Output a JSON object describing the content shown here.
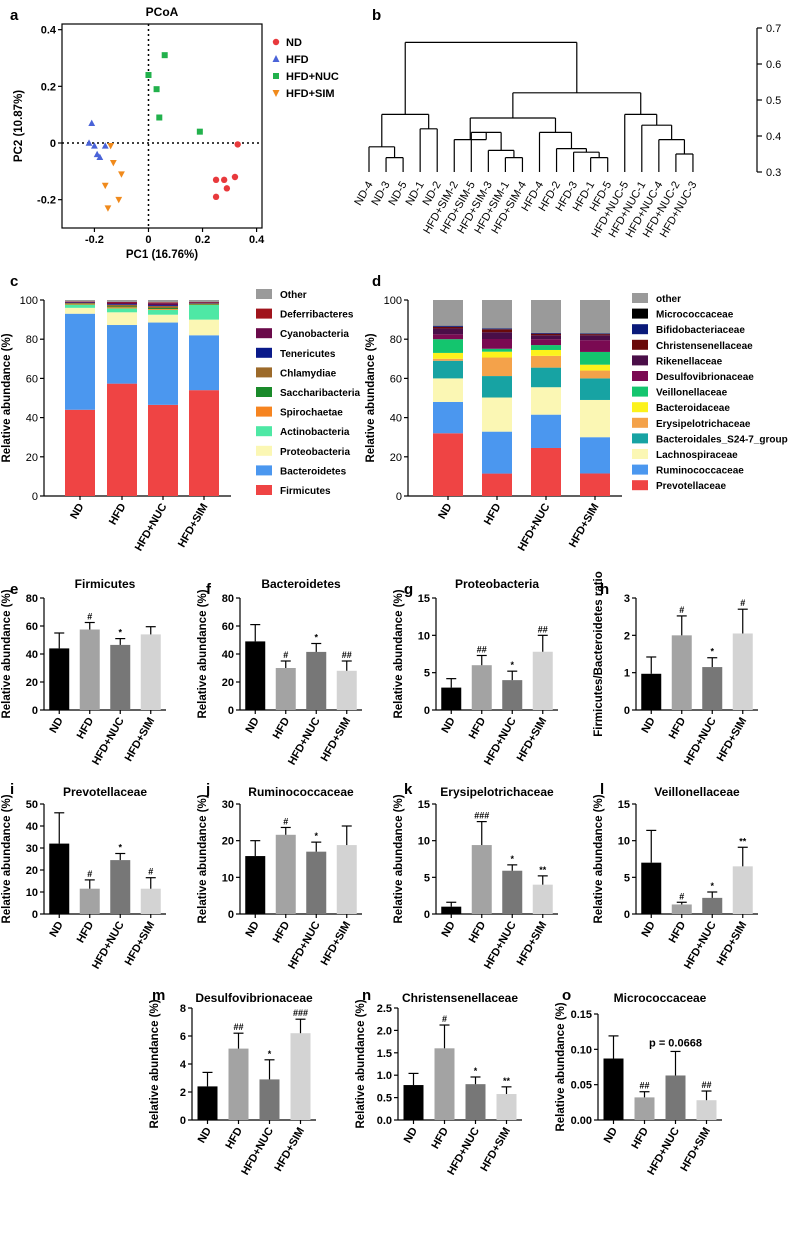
{
  "chart_data": [
    {
      "panel": "a",
      "type": "scatter",
      "title": "PCoA",
      "xlabel": "PC1 (16.76%)",
      "ylabel": "PC2 (10.87%)",
      "xlim": [
        -0.32,
        0.42
      ],
      "ylim": [
        -0.3,
        0.42
      ],
      "xticks": [
        -0.2,
        0.0,
        0.2,
        0.4
      ],
      "yticks": [
        -0.2,
        0.0,
        0.2,
        0.4
      ],
      "series": [
        {
          "name": "ND",
          "color": "#e8393c",
          "marker": "circle",
          "x": [
            0.33,
            0.32,
            0.29,
            0.28,
            0.25,
            0.25
          ],
          "y": [
            -0.005,
            -0.12,
            -0.16,
            -0.13,
            -0.13,
            -0.19
          ]
        },
        {
          "name": "HFD",
          "color": "#4a63d8",
          "marker": "triangle-up",
          "x": [
            -0.21,
            -0.22,
            -0.2,
            -0.16,
            -0.19,
            -0.18
          ],
          "y": [
            0.07,
            0.0,
            -0.01,
            -0.01,
            -0.04,
            -0.05
          ]
        },
        {
          "name": "HFD+NUC",
          "color": "#22b14c",
          "marker": "square",
          "x": [
            0.06,
            0.0,
            0.03,
            0.04,
            0.19,
            0.0
          ],
          "y": [
            0.31,
            0.24,
            0.19,
            0.09,
            0.04,
            0.24
          ]
        },
        {
          "name": "HFD+SIM",
          "color": "#f08a1c",
          "marker": "triangle-down",
          "x": [
            -0.14,
            -0.13,
            -0.1,
            -0.16,
            -0.11,
            -0.15
          ],
          "y": [
            -0.01,
            -0.07,
            -0.11,
            -0.15,
            -0.2,
            -0.23
          ]
        }
      ]
    },
    {
      "panel": "b",
      "type": "dendrogram",
      "yticks": [
        0.3,
        0.4,
        0.5,
        0.6,
        0.7
      ],
      "leaves": [
        "ND-4",
        "ND-3",
        "ND-5",
        "ND-1",
        "ND-2",
        "HFD+SIM-2",
        "HFD+SIM-5",
        "HFD+SIM-3",
        "HFD+SIM-1",
        "HFD+SIM-4",
        "HFD-4",
        "HFD-2",
        "HFD-3",
        "HFD-1",
        "HFD-5",
        "HFD+NUC-5",
        "HFD+NUC-1",
        "HFD+NUC-4",
        "HFD+NUC-2",
        "HFD+NUC-3"
      ],
      "merges": [
        {
          "a": "ND-3",
          "b": "ND-5",
          "height": 0.34
        },
        {
          "a": "ND-3/ND-5",
          "b": "ND-4",
          "height": 0.37
        },
        {
          "a": "ND-1",
          "b": "ND-2",
          "height": 0.42
        },
        {
          "a": "ND-4,3,5",
          "b": "ND-1,2",
          "height": 0.46
        },
        {
          "a": "HFD+SIM-1",
          "b": "HFD+SIM-4",
          "height": 0.34
        },
        {
          "a": "HFD+SIM-3",
          "b": "HFD+SIM-1,4",
          "height": 0.36
        },
        {
          "a": "HFD+SIM-5",
          "b": "HFD+SIM-3,1,4",
          "height": 0.41
        },
        {
          "a": "HFD+SIM-2",
          "b": "HFD+SIM-5,3,1,4",
          "height": 0.39
        },
        {
          "a": "HFD-1",
          "b": "HFD-5",
          "height": 0.34
        },
        {
          "a": "HFD-3",
          "b": "HFD-1,5",
          "height": 0.355
        },
        {
          "a": "HFD-2",
          "b": "HFD-3,1,5",
          "height": 0.365
        },
        {
          "a": "HFD-4",
          "b": "HFD-2,3,1,5",
          "height": 0.41
        },
        {
          "a": "HFD+SIM cluster",
          "b": "HFD cluster",
          "height": 0.45
        },
        {
          "a": "HFD+NUC-2",
          "b": "HFD+NUC-3",
          "height": 0.35
        },
        {
          "a": "HFD+NUC-4",
          "b": "HFD+NUC-2,3",
          "height": 0.39
        },
        {
          "a": "HFD+NUC-1",
          "b": "HFD+NUC-4,2,3",
          "height": 0.43
        },
        {
          "a": "HFD+NUC-5",
          "b": "HFD+NUC-1,4,2,3",
          "height": 0.46
        },
        {
          "a": "HFD+SIM/HFD",
          "b": "HFD+NUC",
          "height": 0.52
        },
        {
          "a": "ND",
          "b": "others",
          "height": 0.66
        }
      ]
    },
    {
      "panel": "c",
      "type": "bar",
      "stacked": true,
      "ylabel": "Relative abundance (%)",
      "ylim": [
        0,
        100
      ],
      "yticks": [
        0,
        20,
        40,
        60,
        80,
        100
      ],
      "categories": [
        "ND",
        "HFD",
        "HFD+NUC",
        "HFD+SIM"
      ],
      "series": [
        {
          "name": "Firmicutes",
          "color": "#ef4444",
          "values": [
            44.0,
            57.5,
            46.5,
            54.0
          ]
        },
        {
          "name": "Bacteroidetes",
          "color": "#4b97ef",
          "values": [
            49.0,
            30.0,
            42.0,
            28.0
          ]
        },
        {
          "name": "Proteobacteria",
          "color": "#fbf7b4",
          "values": [
            3.0,
            6.5,
            4.0,
            8.0
          ]
        },
        {
          "name": "Actinobacteria",
          "color": "#4ee8a5",
          "values": [
            1.5,
            2.0,
            2.5,
            7.5
          ]
        },
        {
          "name": "Spirochaetae",
          "color": "#f68420",
          "values": [
            0.3,
            0.6,
            0.4,
            0.2
          ]
        },
        {
          "name": "Saccharibacteria",
          "color": "#1a8a2a",
          "values": [
            0.3,
            0.4,
            0.5,
            0.3
          ]
        },
        {
          "name": "Chlamydiae",
          "color": "#9c6a2a",
          "values": [
            0.4,
            0.8,
            1.0,
            0.2
          ]
        },
        {
          "name": "Tenericutes",
          "color": "#0a1a8a",
          "values": [
            0.2,
            0.4,
            0.5,
            0.2
          ]
        },
        {
          "name": "Cyanobacteria",
          "color": "#6a0a4a",
          "values": [
            0.4,
            0.8,
            1.0,
            0.4
          ]
        },
        {
          "name": "Deferribacteres",
          "color": "#a0141c",
          "values": [
            0.2,
            0.3,
            0.4,
            0.2
          ]
        },
        {
          "name": "Other",
          "color": "#9a9a9a",
          "values": [
            0.7,
            1.0,
            1.2,
            1.0
          ]
        }
      ],
      "legend_order": [
        "Other",
        "Deferribacteres",
        "Cyanobacteria",
        "Tenericutes",
        "Chlamydiae",
        "Saccharibacteria",
        "Spirochaetae",
        "Actinobacteria",
        "Proteobacteria",
        "Bacteroidetes",
        "Firmicutes"
      ]
    },
    {
      "panel": "d",
      "type": "bar",
      "stacked": true,
      "ylabel": "Relative abundance (%)",
      "ylim": [
        0,
        100
      ],
      "yticks": [
        0,
        20,
        40,
        60,
        80,
        100
      ],
      "categories": [
        "ND",
        "HFD",
        "HFD+NUC",
        "HFD+SIM"
      ],
      "series": [
        {
          "name": "Prevotellaceae",
          "color": "#ef4444",
          "values": [
            32.0,
            11.5,
            24.5,
            11.5
          ]
        },
        {
          "name": "Ruminococcaceae",
          "color": "#4b97ef",
          "values": [
            16.0,
            21.5,
            17.0,
            18.5
          ]
        },
        {
          "name": "Lachnospiraceae",
          "color": "#fbf7b4",
          "values": [
            12.0,
            17.5,
            14.0,
            19.0
          ]
        },
        {
          "name": "Bacteroidales_S24-7_group",
          "color": "#17a3a3",
          "values": [
            9.0,
            11.0,
            10.0,
            11.0
          ]
        },
        {
          "name": "Erysipelotrichaceae",
          "color": "#f4a24a",
          "values": [
            1.0,
            9.5,
            6.0,
            4.0
          ]
        },
        {
          "name": "Bacteroidaceae",
          "color": "#fcf21c",
          "values": [
            3.0,
            3.0,
            3.0,
            3.0
          ]
        },
        {
          "name": "Veillonellaceae",
          "color": "#14c56e",
          "values": [
            7.0,
            1.5,
            2.5,
            6.5
          ]
        },
        {
          "name": "Desulfovibrionaceae",
          "color": "#7a0a52",
          "values": [
            2.5,
            5.0,
            3.0,
            6.0
          ]
        },
        {
          "name": "Rikenellaceae",
          "color": "#4a0e48",
          "values": [
            3.0,
            3.5,
            2.0,
            2.5
          ]
        },
        {
          "name": "Christensenellaceae",
          "color": "#6a0a0a",
          "values": [
            0.8,
            1.5,
            0.8,
            0.6
          ]
        },
        {
          "name": "Bifidobacteriaceae",
          "color": "#0a1a7a",
          "values": [
            0.5,
            0.4,
            0.4,
            0.3
          ]
        },
        {
          "name": "Micrococcaceae",
          "color": "#000000",
          "values": [
            0.1,
            0.03,
            0.06,
            0.03
          ]
        },
        {
          "name": "other",
          "color": "#9a9a9a",
          "values": [
            13.1,
            14.57,
            16.74,
            17.07
          ]
        }
      ],
      "legend_order": [
        "other",
        "Micrococcaceae",
        "Bifidobacteriaceae",
        "Christensenellaceae",
        "Rikenellaceae",
        "Desulfovibrionaceae",
        "Veillonellaceae",
        "Bacteroidaceae",
        "Erysipelotrichaceae",
        "Bacteroidales_S24-7_group",
        "Lachnospiraceae",
        "Ruminococcaceae",
        "Prevotellaceae"
      ]
    },
    {
      "panel": "e",
      "type": "bar",
      "title": "Firmicutes",
      "ylabel": "Relative abundance (%)",
      "ylim": [
        0,
        80
      ],
      "yticks": [
        0,
        20,
        40,
        60,
        80
      ],
      "tick_labels": [
        "0",
        "20",
        "40",
        "60",
        "80"
      ],
      "categories": [
        "ND",
        "HFD",
        "HFD+NUC",
        "HFD+SIM"
      ],
      "values": [
        44,
        57.5,
        46.5,
        54
      ],
      "errors": [
        11,
        5,
        4.5,
        5.5
      ],
      "annotations": [
        "",
        "#",
        "*",
        ""
      ]
    },
    {
      "panel": "f",
      "type": "bar",
      "title": "Bacteroidetes",
      "ylabel": "Relative abundance (%)",
      "ylim": [
        0,
        80
      ],
      "yticks": [
        0,
        20,
        40,
        60,
        80
      ],
      "tick_labels": [
        "0",
        "20",
        "40",
        "60",
        "80"
      ],
      "categories": [
        "ND",
        "HFD",
        "HFD+NUC",
        "HFD+SIM"
      ],
      "values": [
        49,
        30,
        41.5,
        28
      ],
      "errors": [
        12,
        5,
        6,
        7
      ],
      "annotations": [
        "",
        "#",
        "*",
        "##"
      ]
    },
    {
      "panel": "g",
      "type": "bar",
      "title": "Proteobacteria",
      "ylabel": "Relative abundance (%)",
      "ylim": [
        0,
        15
      ],
      "yticks": [
        0,
        5,
        10,
        15
      ],
      "tick_labels": [
        "0",
        "5",
        "10",
        "15"
      ],
      "categories": [
        "ND",
        "HFD",
        "HFD+NUC",
        "HFD+SIM"
      ],
      "values": [
        3,
        6,
        4,
        7.8
      ],
      "errors": [
        1.2,
        1.3,
        1.2,
        2.2
      ],
      "annotations": [
        "",
        "##",
        "*",
        "##"
      ]
    },
    {
      "panel": "h",
      "type": "bar",
      "title": "",
      "ylabel": "Firmicutes/Bacteroidetes ratio",
      "ylim": [
        0,
        3
      ],
      "yticks": [
        0,
        1,
        2,
        3
      ],
      "tick_labels": [
        "0",
        "1",
        "2",
        "3"
      ],
      "categories": [
        "ND",
        "HFD",
        "HFD+NUC",
        "HFD+SIM"
      ],
      "values": [
        0.97,
        2.0,
        1.15,
        2.05
      ],
      "errors": [
        0.45,
        0.52,
        0.25,
        0.65
      ],
      "annotations": [
        "",
        "#",
        "*",
        "#"
      ]
    },
    {
      "panel": "i",
      "type": "bar",
      "title": "Prevotellaceae",
      "ylabel": "Relative abundance (%)",
      "ylim": [
        0,
        50
      ],
      "yticks": [
        0,
        10,
        20,
        30,
        40,
        50
      ],
      "tick_labels": [
        "0",
        "10",
        "20",
        "30",
        "40",
        "50"
      ],
      "categories": [
        "ND",
        "HFD",
        "HFD+NUC",
        "HFD+SIM"
      ],
      "values": [
        32,
        11.5,
        24.5,
        11.5
      ],
      "errors": [
        14,
        4,
        3,
        5
      ],
      "annotations": [
        "",
        "#",
        "*",
        "#"
      ]
    },
    {
      "panel": "j",
      "type": "bar",
      "title": "Ruminococcaceae",
      "ylabel": "Relative abundance (%)",
      "ylim": [
        0,
        30
      ],
      "yticks": [
        0,
        10,
        20,
        30
      ],
      "tick_labels": [
        "0",
        "10",
        "20",
        "30"
      ],
      "categories": [
        "ND",
        "HFD",
        "HFD+NUC",
        "HFD+SIM"
      ],
      "values": [
        15.8,
        21.6,
        17,
        18.8
      ],
      "errors": [
        4.2,
        2,
        2.6,
        5.2
      ],
      "annotations": [
        "",
        "#",
        "*",
        ""
      ]
    },
    {
      "panel": "k",
      "type": "bar",
      "title": "Erysipelotrichaceae",
      "ylabel": "Relative abundance (%)",
      "ylim": [
        0,
        15
      ],
      "yticks": [
        0,
        5,
        10,
        15
      ],
      "tick_labels": [
        "0",
        "5",
        "10",
        "15"
      ],
      "categories": [
        "ND",
        "HFD",
        "HFD+NUC",
        "HFD+SIM"
      ],
      "values": [
        1.0,
        9.4,
        5.9,
        4.0
      ],
      "errors": [
        0.6,
        3.2,
        0.8,
        1.2
      ],
      "annotations": [
        "",
        "###",
        "*",
        "**"
      ]
    },
    {
      "panel": "l",
      "type": "bar",
      "title": "Veillonellaceae",
      "ylabel": "Relative abundance (%)",
      "ylim": [
        0,
        15
      ],
      "yticks": [
        0,
        5,
        10,
        15
      ],
      "tick_labels": [
        "0",
        "5",
        "10",
        "15"
      ],
      "categories": [
        "ND",
        "HFD",
        "HFD+NUC",
        "HFD+SIM"
      ],
      "values": [
        7.0,
        1.3,
        2.2,
        6.5
      ],
      "errors": [
        4.4,
        0.3,
        0.8,
        2.6
      ],
      "annotations": [
        "",
        "#",
        "*",
        "**"
      ]
    },
    {
      "panel": "m",
      "type": "bar",
      "title": "Desulfovibrionaceae",
      "ylabel": "Relative abundance (%)",
      "ylim": [
        0,
        8
      ],
      "yticks": [
        0,
        2,
        4,
        6,
        8
      ],
      "tick_labels": [
        "0",
        "2",
        "4",
        "6",
        "8"
      ],
      "categories": [
        "ND",
        "HFD",
        "HFD+NUC",
        "HFD+SIM"
      ],
      "values": [
        2.4,
        5.1,
        2.9,
        6.2
      ],
      "errors": [
        1.0,
        1.1,
        1.4,
        1.0
      ],
      "annotations": [
        "",
        "##",
        "*",
        "###"
      ]
    },
    {
      "panel": "n",
      "type": "bar",
      "title": "Christensenellaceae",
      "ylabel": "Relative abundance (%)",
      "ylim": [
        0,
        2.5
      ],
      "yticks": [
        0,
        0.5,
        1,
        1.5,
        2,
        2.5
      ],
      "tick_labels": [
        "0.0",
        "0.5",
        "1.0",
        "1.5",
        "2.0",
        "2.5"
      ],
      "categories": [
        "ND",
        "HFD",
        "HFD+NUC",
        "HFD+SIM"
      ],
      "values": [
        0.78,
        1.6,
        0.8,
        0.58
      ],
      "errors": [
        0.26,
        0.52,
        0.16,
        0.16
      ],
      "annotations": [
        "",
        "#",
        "*",
        "**"
      ]
    },
    {
      "panel": "o",
      "type": "bar",
      "title": "Micrococcaceae",
      "ylabel": "Relative abundance (%)",
      "ylim": [
        0,
        0.15
      ],
      "yticks": [
        0,
        0.05,
        0.1,
        0.15
      ],
      "tick_labels": [
        "0.00",
        "0.05",
        "0.10",
        "0.15"
      ],
      "categories": [
        "ND",
        "HFD",
        "HFD+NUC",
        "HFD+SIM"
      ],
      "values": [
        0.087,
        0.032,
        0.063,
        0.028
      ],
      "errors": [
        0.032,
        0.008,
        0.034,
        0.013
      ],
      "annotations": [
        "",
        "##",
        "",
        "##"
      ],
      "pvalue_note": "p = 0.0668"
    }
  ],
  "bar_colors": [
    "#000000",
    "#a3a3a3",
    "#777777",
    "#d3d3d3"
  ],
  "panel_letters": [
    "a",
    "b",
    "c",
    "d",
    "e",
    "f",
    "g",
    "h",
    "i",
    "j",
    "k",
    "l",
    "m",
    "n",
    "o"
  ]
}
